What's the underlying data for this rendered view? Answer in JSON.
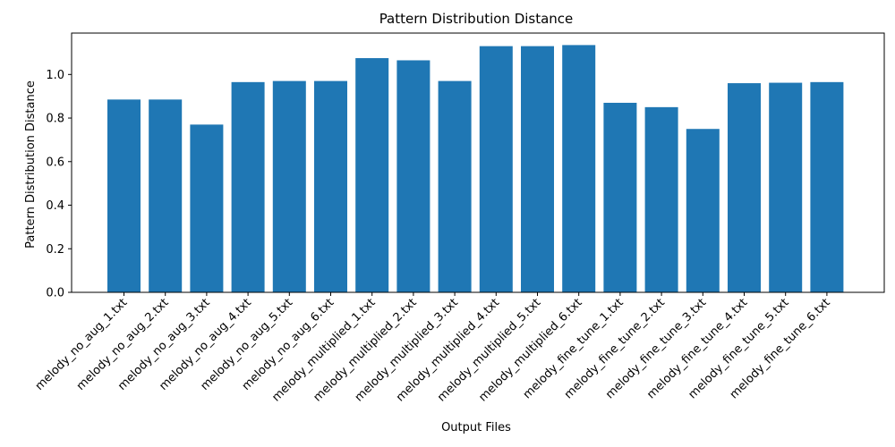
{
  "chart_data": {
    "type": "bar",
    "title": "Pattern Distribution Distance",
    "xlabel": "Output Files",
    "ylabel": "Pattern Distribution Distance",
    "categories": [
      "melody_no_aug_1.txt",
      "melody_no_aug_2.txt",
      "melody_no_aug_3.txt",
      "melody_no_aug_4.txt",
      "melody_no_aug_5.txt",
      "melody_no_aug_6.txt",
      "melody_multiplied_1.txt",
      "melody_multiplied_2.txt",
      "melody_multiplied_3.txt",
      "melody_multiplied_4.txt",
      "melody_multiplied_5.txt",
      "melody_multiplied_6.txt",
      "melody_fine_tune_1.txt",
      "melody_fine_tune_2.txt",
      "melody_fine_tune_3.txt",
      "melody_fine_tune_4.txt",
      "melody_fine_tune_5.txt",
      "melody_fine_tune_6.txt"
    ],
    "values": [
      0.885,
      0.885,
      0.77,
      0.965,
      0.97,
      0.97,
      1.075,
      1.065,
      0.97,
      1.13,
      1.13,
      1.135,
      0.87,
      0.85,
      0.75,
      0.96,
      0.962,
      0.965
    ],
    "ylim": [
      0,
      1.19
    ],
    "yticks": [
      "0.0",
      "0.2",
      "0.4",
      "0.6",
      "0.8",
      "1.0"
    ],
    "grid": false,
    "colors": {
      "bar": "#1f77b4",
      "axis": "#000000"
    }
  }
}
